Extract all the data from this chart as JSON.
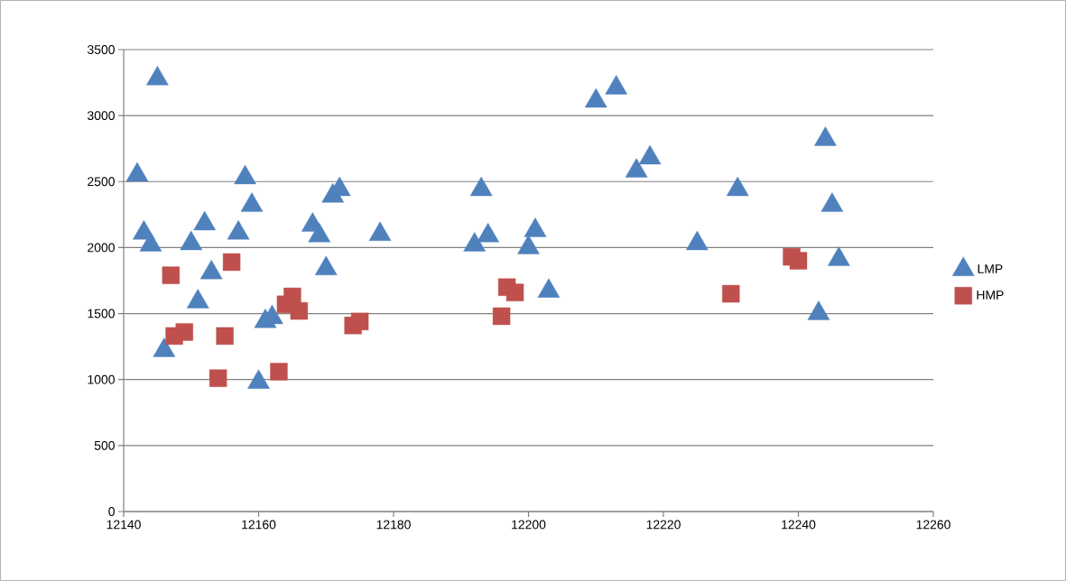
{
  "chart_data": {
    "type": "scatter",
    "xlim": [
      12140,
      12260
    ],
    "xticks": [
      12140,
      12160,
      12180,
      12200,
      12220,
      12240,
      12260
    ],
    "ylim": [
      0,
      3500
    ],
    "yticks": [
      0,
      500,
      1000,
      1500,
      2000,
      2500,
      3000,
      3500
    ],
    "grid": "y",
    "legend": "right",
    "series": [
      {
        "name": "LMP",
        "color": "#4f81bd",
        "marker": "triangle",
        "x": [
          12145,
          12142,
          12143,
          12144,
          12146,
          12150,
          12151,
          12152,
          12153,
          12157,
          12158,
          12159,
          12160,
          12161,
          12162,
          12168,
          12169,
          12170,
          12171,
          12172,
          12178,
          12192,
          12193,
          12194,
          12200,
          12201,
          12203,
          12210,
          12213,
          12216,
          12218,
          12225,
          12231,
          12243,
          12244,
          12245,
          12246
        ],
        "values": [
          3280,
          2550,
          2110,
          2020,
          1220,
          2030,
          1590,
          2180,
          1810,
          2110,
          2530,
          2320,
          980,
          1440,
          1470,
          2170,
          2090,
          1840,
          2390,
          2440,
          2100,
          2020,
          2440,
          2090,
          2000,
          2130,
          1670,
          3110,
          3210,
          2580,
          2680,
          2030,
          2440,
          1500,
          2820,
          2320,
          1910
        ]
      },
      {
        "name": "HMP",
        "color": "#c0504d",
        "marker": "square",
        "x": [
          12147,
          12147.5,
          12149,
          12154,
          12155,
          12156,
          12163,
          12164,
          12165,
          12166,
          12174,
          12175,
          12196,
          12196.8,
          12198,
          12230,
          12239,
          12240
        ],
        "values": [
          1790,
          1330,
          1360,
          1010,
          1330,
          1890,
          1060,
          1570,
          1630,
          1520,
          1410,
          1440,
          1480,
          1700,
          1660,
          1650,
          1930,
          1900
        ]
      }
    ]
  }
}
